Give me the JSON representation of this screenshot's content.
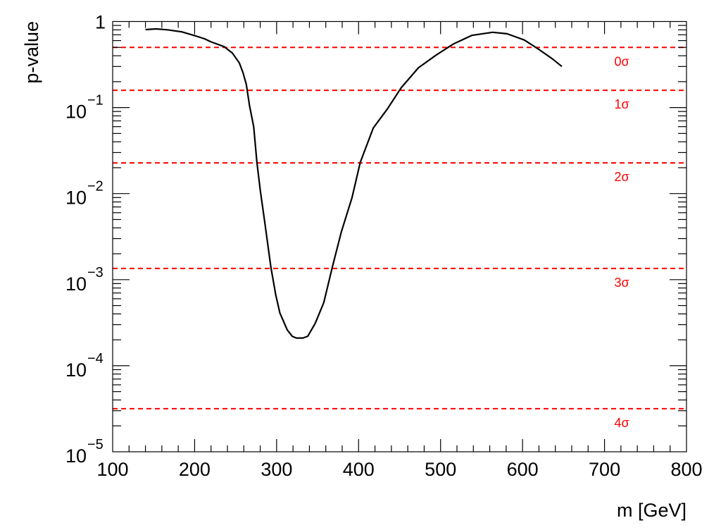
{
  "chart_data": {
    "type": "line",
    "title": "",
    "xlabel": "m [GeV]",
    "ylabel": "p-value",
    "xlim": [
      100,
      800
    ],
    "ylim": [
      1e-05,
      1
    ],
    "yscale": "log",
    "grid": false,
    "x_ticks": [
      "100",
      "200",
      "300",
      "400",
      "500",
      "600",
      "700",
      "800"
    ],
    "y_ticks": [
      {
        "value": 1,
        "base": "1",
        "exp": ""
      },
      {
        "value": 0.1,
        "base": "10",
        "exp": "−1"
      },
      {
        "value": 0.01,
        "base": "10",
        "exp": "−2"
      },
      {
        "value": 0.001,
        "base": "10",
        "exp": "−3"
      },
      {
        "value": 0.0001,
        "base": "10",
        "exp": "−4"
      },
      {
        "value": 1e-05,
        "base": "10",
        "exp": "−5"
      }
    ],
    "series": [
      {
        "color": "#000000",
        "x": [
          140,
          153,
          167,
          184,
          199,
          212,
          220,
          236,
          246,
          254.5,
          259,
          263,
          267,
          272,
          276,
          280,
          286,
          293,
          299,
          304,
          313,
          319,
          324,
          332,
          338,
          347,
          357.5,
          368,
          379,
          392,
          402,
          418,
          435,
          452,
          473,
          495,
          516,
          538,
          563.5,
          581,
          602,
          619,
          636,
          648
        ],
        "y": [
          0.805,
          0.82,
          0.8,
          0.76,
          0.69,
          0.63,
          0.58,
          0.51,
          0.43,
          0.33,
          0.255,
          0.186,
          0.105,
          0.06,
          0.023,
          0.011,
          0.0043,
          0.0014,
          0.00066,
          0.00041,
          0.00026,
          0.00022,
          0.00021,
          0.00021,
          0.00022,
          0.00031,
          0.00054,
          0.0014,
          0.0036,
          0.009,
          0.023,
          0.058,
          0.096,
          0.17,
          0.29,
          0.41,
          0.55,
          0.69,
          0.75,
          0.72,
          0.61,
          0.48,
          0.37,
          0.3
        ]
      }
    ],
    "reference_lines": [
      {
        "label": "0σ",
        "value": 0.5
      },
      {
        "label": "1σ",
        "value": 0.1587
      },
      {
        "label": "2σ",
        "value": 0.02275
      },
      {
        "label": "3σ",
        "value": 0.00135
      },
      {
        "label": "4σ",
        "value": 3.17e-05
      }
    ],
    "colors": {
      "curve": "#000000",
      "reference": "#ff0000"
    }
  }
}
